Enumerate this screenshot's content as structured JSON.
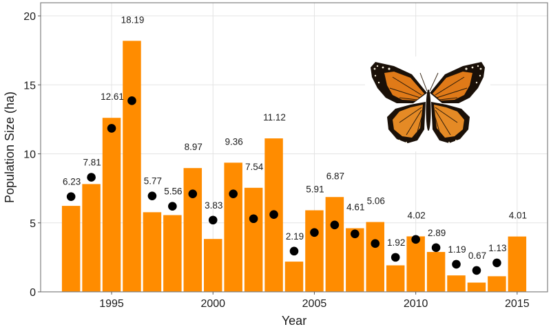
{
  "chart_data": {
    "type": "bar",
    "title": "",
    "xlabel": "Year",
    "ylabel": "Population Size (ha)",
    "xlim": [
      1991.5,
      2016.5
    ],
    "ylim": [
      0,
      20.95
    ],
    "grid": true,
    "x_ticks": [
      1995,
      2000,
      2005,
      2010,
      2015
    ],
    "y_ticks": [
      0,
      5,
      10,
      15,
      20
    ],
    "bar_color": "#FF8C00",
    "point_color": "#000000",
    "categories": [
      1993,
      1994,
      1995,
      1996,
      1997,
      1998,
      1999,
      2000,
      2001,
      2002,
      2003,
      2004,
      2005,
      2006,
      2007,
      2008,
      2009,
      2010,
      2011,
      2012,
      2013,
      2014,
      2015
    ],
    "series": [
      {
        "name": "Population Size",
        "type": "bar",
        "values": [
          6.23,
          7.81,
          12.61,
          18.19,
          5.77,
          5.56,
          8.97,
          3.83,
          9.36,
          7.54,
          11.12,
          2.19,
          5.91,
          6.87,
          4.61,
          5.06,
          1.92,
          4.02,
          2.89,
          1.19,
          0.67,
          1.13,
          4.01
        ],
        "labels": [
          "6.23",
          "7.81",
          "12.61",
          "18.19",
          "5.77",
          "5.56",
          "8.97",
          "3.83",
          "9.36",
          "7.54",
          "11.12",
          "2.19",
          "5.91",
          "6.87",
          "4.61",
          "5.06",
          "1.92",
          "4.02",
          "2.89",
          "1.19",
          "0.67",
          "1.13",
          "4.01"
        ]
      },
      {
        "name": "Points",
        "type": "scatter",
        "x": [
          1993,
          1994,
          1995,
          1996,
          1997,
          1998,
          1999,
          2000,
          2001,
          2002,
          2003,
          2004,
          2005,
          2006,
          2007,
          2008,
          2009,
          2010,
          2011,
          2012,
          2013,
          2014
        ],
        "values": [
          6.9,
          8.3,
          11.85,
          13.85,
          6.95,
          6.2,
          7.1,
          5.2,
          7.1,
          5.3,
          5.6,
          2.95,
          4.3,
          4.85,
          4.2,
          3.5,
          2.5,
          3.8,
          3.2,
          2.0,
          1.55,
          2.1
        ]
      }
    ],
    "annotations": [
      "monarch-butterfly-image"
    ]
  }
}
